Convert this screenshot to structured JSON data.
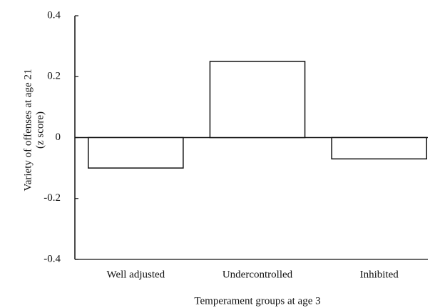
{
  "chart_data": {
    "type": "bar",
    "y_label": [
      "Variety of offenses at age 21",
      "(z score)"
    ],
    "x_label": "Temperament groups at age 3",
    "categories": [
      "Well adjusted",
      "Undercontrolled",
      "Inhibited"
    ],
    "values": [
      -0.1,
      0.25,
      -0.07
    ],
    "color": "#ffffff",
    "ylim": [
      -0.4,
      0.4
    ],
    "yticks": [
      0.4,
      0.2,
      0,
      -0.2,
      -0.4
    ],
    "grid": false
  }
}
